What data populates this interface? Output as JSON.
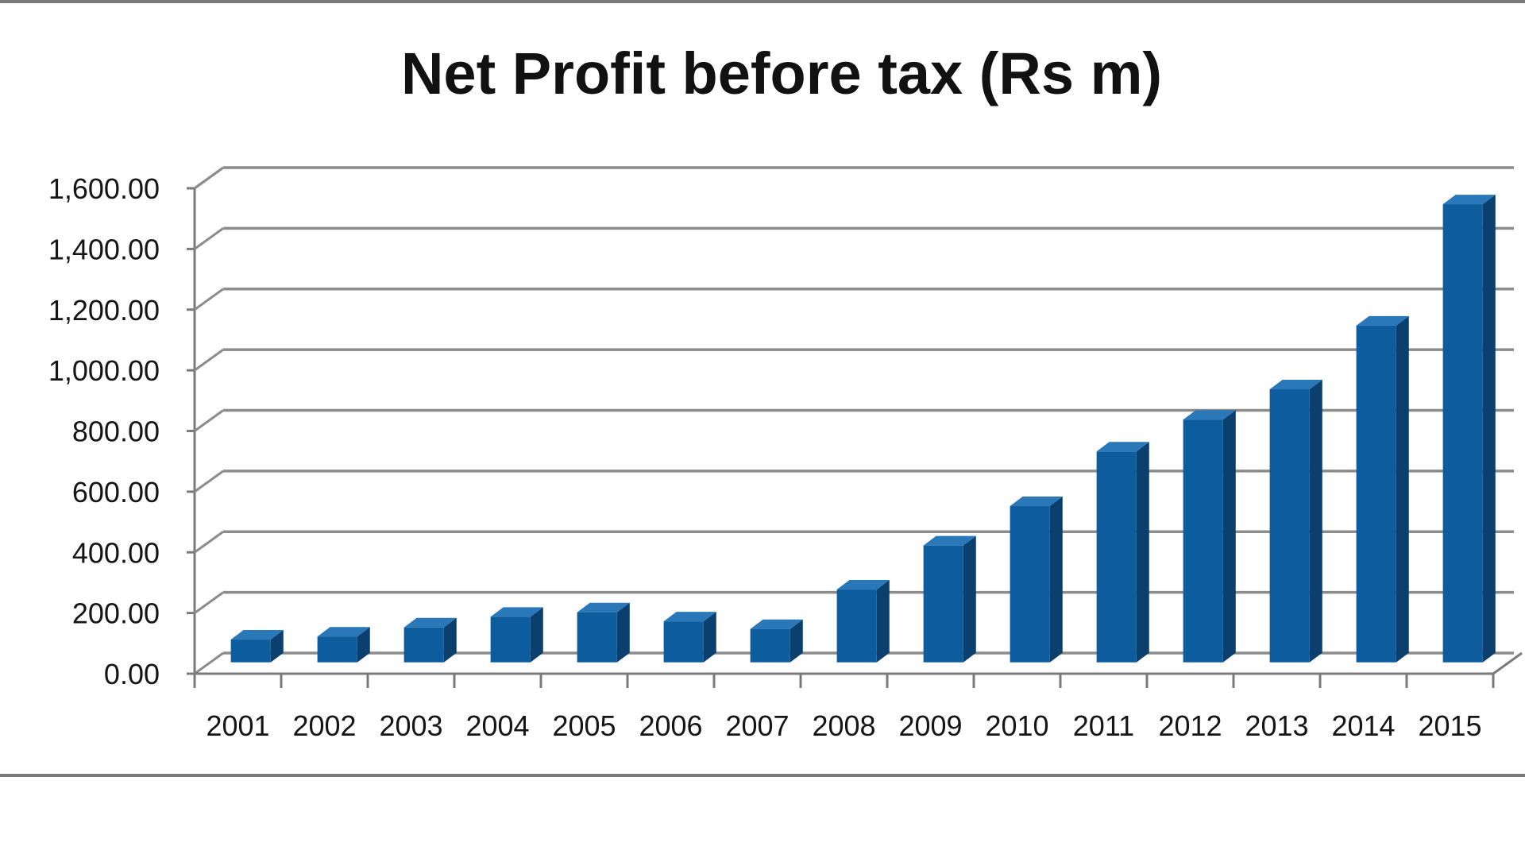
{
  "chart_data": {
    "type": "bar",
    "style": "3d-column",
    "title": "Net Profit before tax (Rs m)",
    "xlabel": "",
    "ylabel": "",
    "categories": [
      "2001",
      "2002",
      "2003",
      "2004",
      "2005",
      "2006",
      "2007",
      "2008",
      "2009",
      "2010",
      "2011",
      "2012",
      "2013",
      "2014",
      "2015"
    ],
    "series": [
      {
        "name": "Net Profit before tax",
        "values": [
          75,
          85,
          115,
          150,
          165,
          135,
          110,
          240,
          385,
          515,
          695,
          800,
          900,
          1110,
          1510
        ]
      }
    ],
    "ylim": [
      0,
      1600
    ],
    "yticks": [
      0,
      200,
      400,
      600,
      800,
      1000,
      1200,
      1400,
      1600
    ],
    "ytick_labels": [
      "0.00",
      "200.00",
      "400.00",
      "600.00",
      "800.00",
      "1,000.00",
      "1,200.00",
      "1,400.00",
      "1,600.00"
    ],
    "grid": true,
    "legend": "none",
    "colors": {
      "bar_front": "#0d5c9e",
      "bar_side": "#0a3f6e",
      "bar_top": "#2a78b8",
      "grid": "#8c8c8c",
      "frame": "#7a7a7a",
      "text": "#151515"
    }
  }
}
